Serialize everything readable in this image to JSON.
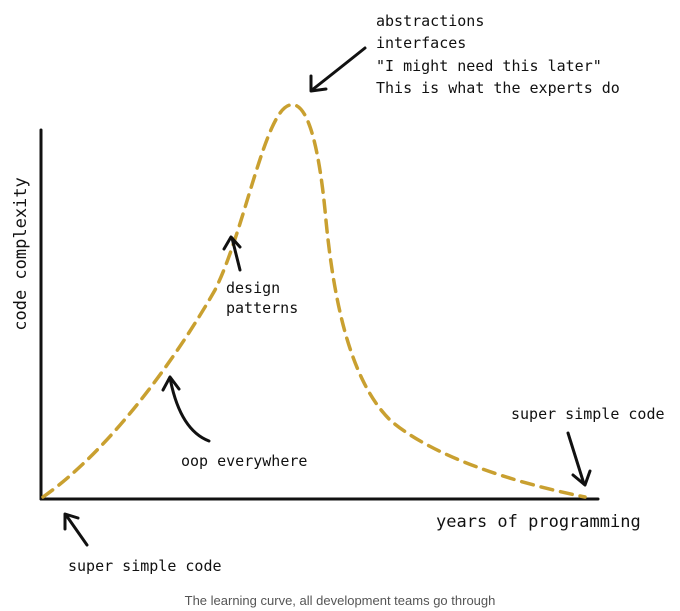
{
  "diagram": {
    "y_axis_label": "code complexity",
    "x_axis_label": "years of programming",
    "curve_color": "#c9a030",
    "axis_color": "#111111",
    "annotations": {
      "peak": [
        "abstractions",
        "interfaces",
        "\"I might need this later\"",
        "This is what the experts do"
      ],
      "design_patterns": [
        "design",
        "patterns"
      ],
      "oop": "oop everywhere",
      "start": "super simple code",
      "end": "super simple code"
    }
  },
  "caption": "The learning curve, all development teams go through"
}
